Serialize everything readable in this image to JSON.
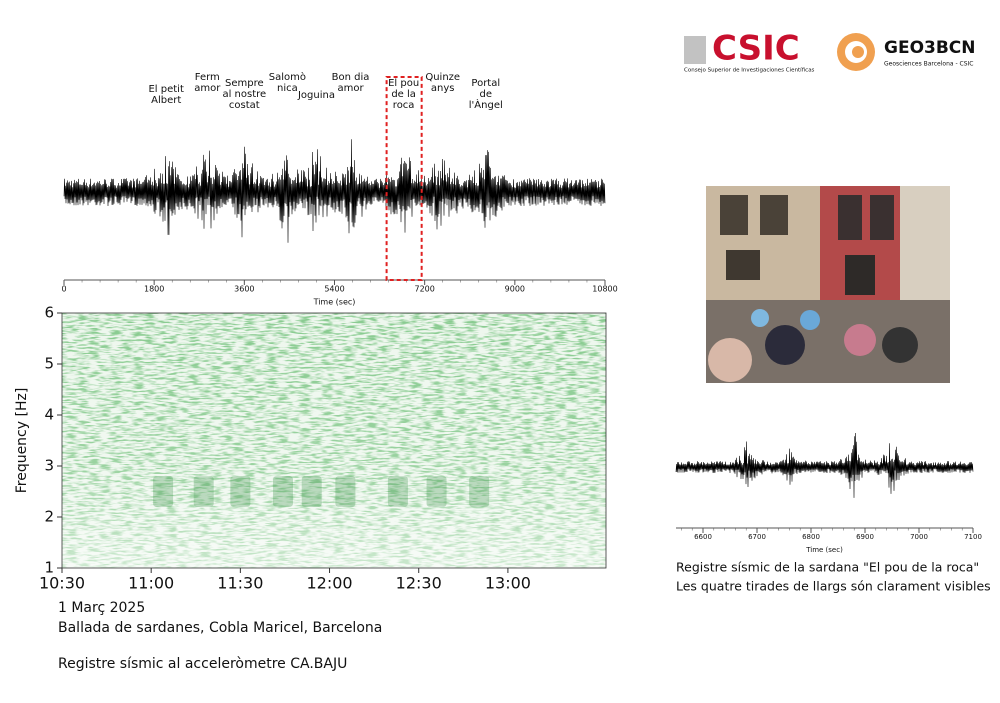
{
  "logos": {
    "csic": "CSIC",
    "csic_sub": "Consejo Superior de Investigaciones Científicas",
    "geo": "GEO3BCN",
    "geo_sub": "Geosciences Barcelona - CSIC"
  },
  "seismogram": {
    "type": "waveform",
    "xlabel": "Time (sec)",
    "xlim": [
      0,
      10800
    ],
    "xticks": [
      0,
      1800,
      3600,
      5400,
      7200,
      9000,
      10800
    ],
    "annotations": [
      {
        "lines": [
          "El petit",
          "Albert"
        ],
        "x": 2040
      },
      {
        "lines": [
          "Ferm",
          "amor"
        ],
        "x": 2860
      },
      {
        "lines": [
          "Sempre",
          "al nostre",
          "costat"
        ],
        "x": 3600
      },
      {
        "lines": [
          "Salomò",
          "nica"
        ],
        "x": 4460
      },
      {
        "lines": [
          "Joguina"
        ],
        "x": 5040
      },
      {
        "lines": [
          "Bon dia",
          "amor"
        ],
        "x": 5720
      },
      {
        "lines": [
          "El pou",
          "de la",
          "roca"
        ],
        "x": 6780
      },
      {
        "lines": [
          "Quinze",
          "anys"
        ],
        "x": 7560
      },
      {
        "lines": [
          "Portal",
          "de",
          "l'Àngel"
        ],
        "x": 8420
      }
    ],
    "highlight": [
      6440,
      7140
    ]
  },
  "spectrogram": {
    "type": "spectrogram",
    "ylabel": "Frequency [Hz]",
    "ylim": [
      1,
      6
    ],
    "yticks": [
      1,
      2,
      3,
      4,
      5,
      6
    ],
    "xlim": [
      630,
      813
    ],
    "xticks": [
      {
        "value": 630,
        "label": "10:30"
      },
      {
        "value": 660,
        "label": "11:00"
      },
      {
        "value": 690,
        "label": "11:30"
      },
      {
        "value": 720,
        "label": "12:00"
      },
      {
        "value": 750,
        "label": "12:30"
      },
      {
        "value": 780,
        "label": "13:00"
      }
    ]
  },
  "caption": {
    "date": "1 Març 2025",
    "event": "Ballada de sardanes, Cobla Maricel, Barcelona",
    "sensor": "Registre sísmic al acceleròmetre CA.BAJU"
  },
  "detail": {
    "type": "waveform",
    "xlabel": "Time (sec)",
    "xlim": [
      6550,
      7100
    ],
    "xticks": [
      6600,
      6700,
      6800,
      6900,
      7000,
      7100
    ],
    "caption": [
      "Registre sísmic de la sardana \"El pou de la roca\"",
      "Les quatre tirades de llargs són clarament visibles"
    ]
  }
}
